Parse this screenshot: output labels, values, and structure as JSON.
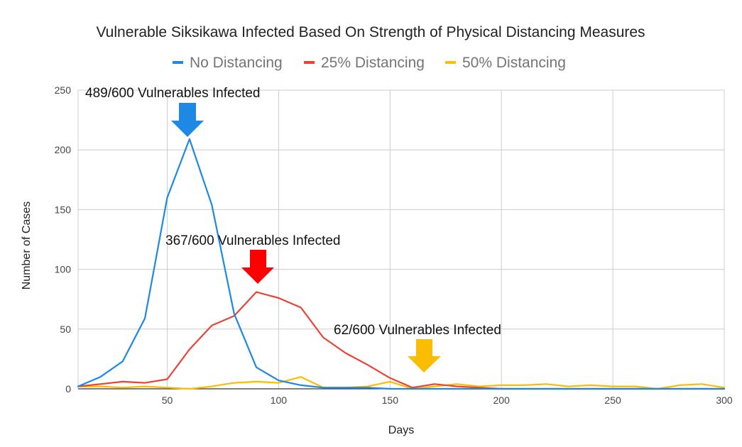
{
  "chart_data": {
    "type": "line",
    "title": "Vulnerable Siksikawa Infected Based On Strength of Physical Distancing Measures",
    "xlabel": "Days",
    "ylabel": "Number of Cases",
    "xlim": [
      10,
      300
    ],
    "ylim": [
      0,
      250
    ],
    "x_ticks": [
      50,
      100,
      150,
      200,
      250,
      300
    ],
    "y_ticks": [
      0,
      50,
      100,
      150,
      200,
      250
    ],
    "grid": true,
    "legend_position": "top",
    "x": [
      10,
      20,
      30,
      40,
      50,
      60,
      70,
      80,
      90,
      100,
      110,
      120,
      130,
      140,
      150,
      160,
      170,
      180,
      190,
      200,
      210,
      220,
      230,
      240,
      250,
      260,
      270,
      280,
      290,
      300
    ],
    "series": [
      {
        "name": "No Distancing",
        "color": "#1e88e5",
        "values": [
          2,
          10,
          23,
          59,
          160,
          209,
          154,
          63,
          18,
          7,
          3,
          1,
          1,
          1,
          0,
          0,
          0,
          0,
          0,
          0,
          0,
          0,
          0,
          0,
          0,
          0,
          0,
          0,
          0,
          0
        ]
      },
      {
        "name": "25% Distancing",
        "color": "#ea4335",
        "values": [
          2,
          4,
          6,
          5,
          8,
          33,
          53,
          61,
          81,
          76,
          68,
          43,
          30,
          20,
          9,
          1,
          4,
          2,
          1,
          0,
          0,
          0,
          0,
          0,
          0,
          0,
          0,
          0,
          0,
          0
        ]
      },
      {
        "name": "50% Distancing",
        "color": "#fbbc04",
        "values": [
          2,
          2,
          1,
          2,
          1,
          0,
          2,
          5,
          6,
          5,
          10,
          1,
          1,
          2,
          6,
          0,
          2,
          4,
          2,
          3,
          3,
          4,
          2,
          3,
          2,
          2,
          0,
          3,
          4,
          1
        ]
      }
    ],
    "annotations": [
      {
        "text": "489/600 Vulnerables Infected",
        "arrow_color": "#1e88e5"
      },
      {
        "text": "367/600 Vulnerables Infected",
        "arrow_color": "#ff0000"
      },
      {
        "text": "62/600 Vulnerables Infected",
        "arrow_color": "#fbbc04"
      }
    ]
  }
}
